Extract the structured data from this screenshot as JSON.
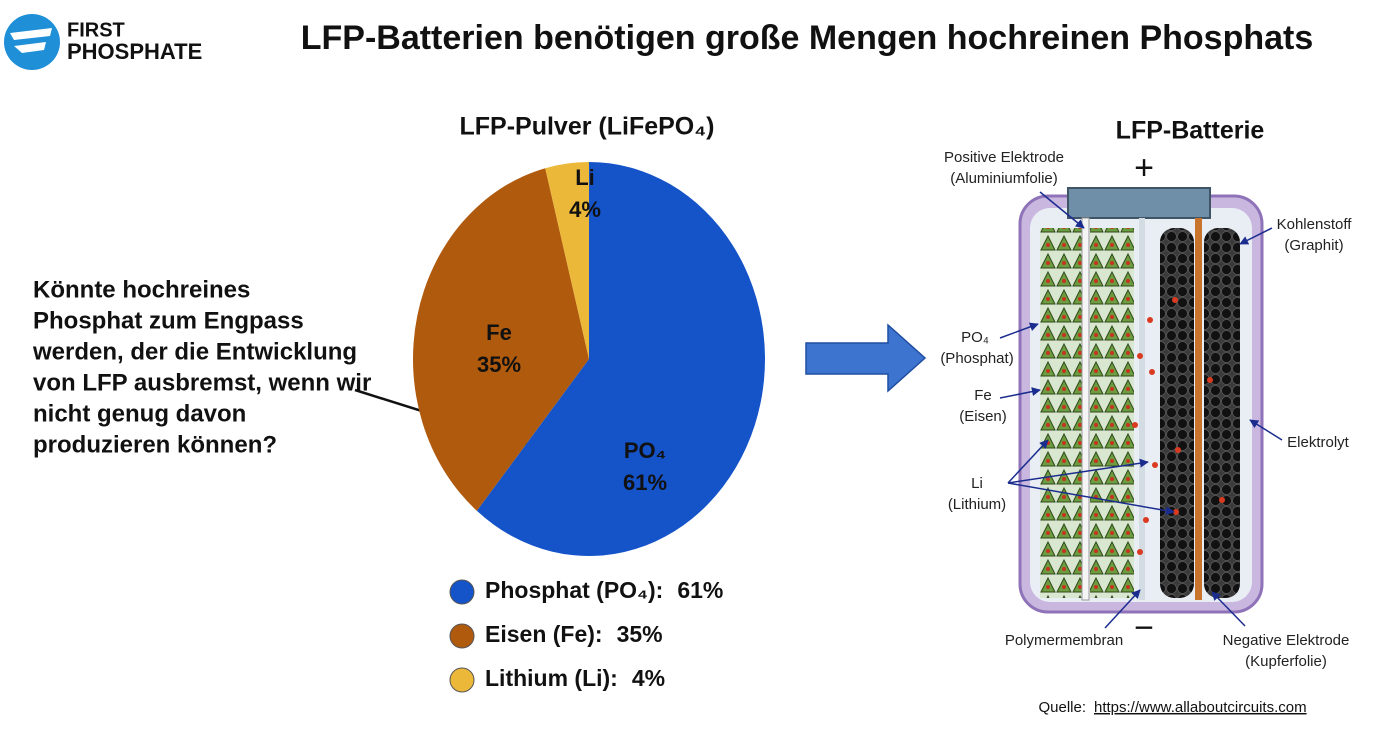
{
  "header": {
    "logo_top": "FIRST",
    "logo_bottom": "PHOSPHATE",
    "title": "LFP-Batterien benötigen große Mengen hochreinen Phosphats"
  },
  "question": [
    "Könnte hochreines",
    "Phosphat zum Engpass",
    "werden, der die Entwicklung",
    "von LFP ausbremst, wenn wir",
    "nicht genug davon",
    "produzieren können?"
  ],
  "chart_data": {
    "type": "pie",
    "title": "LFP-Pulver (LiFePO₄)",
    "categories": [
      "PO₄",
      "Fe",
      "Li"
    ],
    "values": [
      61,
      35,
      4
    ],
    "value_labels": [
      "61%",
      "35%",
      "4%"
    ],
    "legend_labels": [
      "Phosphat (PO₄):",
      "Eisen (Fe):",
      "Lithium (Li):"
    ],
    "colors": [
      "#1553c9",
      "#b05a0d",
      "#ecb83a"
    ]
  },
  "diagram": {
    "title": "LFP-Batterie",
    "plus": "+",
    "minus": "−",
    "positive_electrode": [
      "Positive Elektrode",
      "(Aluminiumfolie)"
    ],
    "carbon": [
      "Kohlenstoff",
      "(Graphit)"
    ],
    "phosphate": [
      "PO₄",
      "(Phosphat)"
    ],
    "iron": [
      "Fe",
      "(Eisen)"
    ],
    "lithium": [
      "Li",
      "(Lithium)"
    ],
    "electrolyte": "Elektrolyt",
    "membrane": "Polymermembran",
    "negative_electrode": [
      "Negative Elektrode",
      "(Kupferfolie)"
    ]
  },
  "source": {
    "label": "Quelle:",
    "url": "https://www.allaboutcircuits.com"
  }
}
